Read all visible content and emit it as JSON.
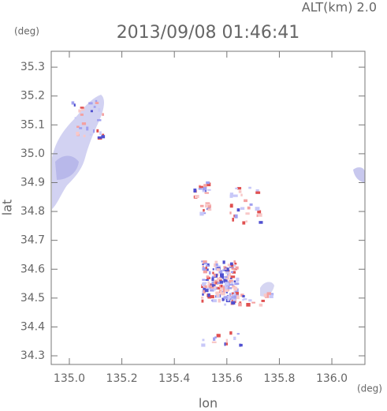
{
  "chart_data": {
    "type": "radar-map",
    "title": "2013/09/08 01:46:41",
    "altitude_label": "ALT(km) 2.0",
    "y_unit": "(deg)",
    "x_unit": "(deg)",
    "xlabel": "lon",
    "ylabel": "lat",
    "xlim": [
      134.931,
      136.126
    ],
    "ylim": [
      34.27,
      35.355
    ],
    "xticks": [
      {
        "value": 135,
        "label": "135.0"
      },
      135.2,
      135.4,
      135.6,
      135.8,
      {
        "value": 136,
        "label": "136.0"
      }
    ],
    "yticks": [
      34.3,
      34.4,
      34.5,
      34.6,
      34.7,
      34.8,
      34.9,
      {
        "value": 35,
        "label": "35.0"
      },
      35.1,
      35.2,
      35.3
    ]
  }
}
